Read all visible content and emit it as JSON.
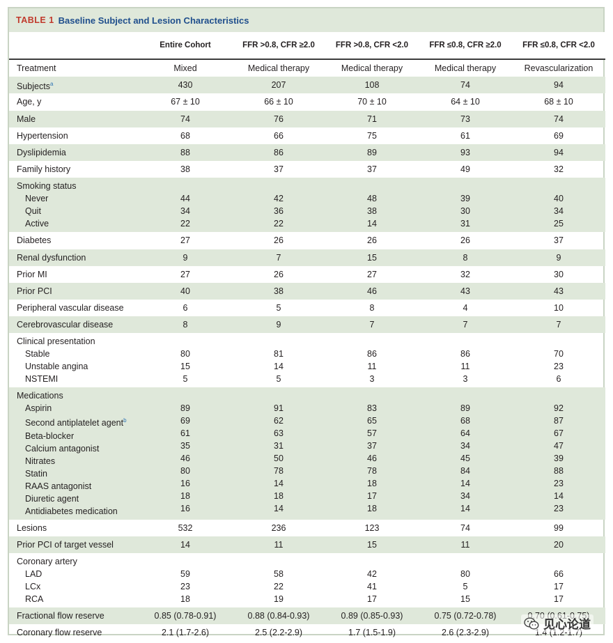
{
  "table": {
    "number": "TABLE 1",
    "title": "Baseline Subject and Lesion Characteristics",
    "columns": [
      "",
      "Entire Cohort",
      "FFR >0.8, CFR ≥2.0",
      "FFR >0.8, CFR <2.0",
      "FFR ≤0.8, CFR ≥2.0",
      "FFR ≤0.8, CFR <2.0"
    ],
    "rows": [
      {
        "label": "Treatment",
        "values": [
          "Mixed",
          "Medical therapy",
          "Medical therapy",
          "Medical therapy",
          "Revascularization"
        ]
      },
      {
        "label": "Subjects",
        "sup": "a",
        "values": [
          "430",
          "207",
          "108",
          "74",
          "94"
        ]
      },
      {
        "label": "Age, y",
        "values": [
          "67 ± 10",
          "66 ± 10",
          "70 ± 10",
          "64 ± 10",
          "68 ± 10"
        ]
      },
      {
        "label": "Male",
        "values": [
          "74",
          "76",
          "71",
          "73",
          "74"
        ]
      },
      {
        "label": "Hypertension",
        "values": [
          "68",
          "66",
          "75",
          "61",
          "69"
        ]
      },
      {
        "label": "Dyslipidemia",
        "values": [
          "88",
          "86",
          "89",
          "93",
          "94"
        ]
      },
      {
        "label": "Family history",
        "values": [
          "38",
          "37",
          "37",
          "49",
          "32"
        ]
      },
      {
        "label": "Smoking status",
        "group": true,
        "items": [
          {
            "label": "Never",
            "values": [
              "44",
              "42",
              "48",
              "39",
              "40"
            ]
          },
          {
            "label": "Quit",
            "values": [
              "34",
              "36",
              "38",
              "30",
              "34"
            ]
          },
          {
            "label": "Active",
            "values": [
              "22",
              "22",
              "14",
              "31",
              "25"
            ]
          }
        ]
      },
      {
        "label": "Diabetes",
        "values": [
          "27",
          "26",
          "26",
          "26",
          "37"
        ]
      },
      {
        "label": "Renal dysfunction",
        "values": [
          "9",
          "7",
          "15",
          "8",
          "9"
        ]
      },
      {
        "label": "Prior MI",
        "values": [
          "27",
          "26",
          "27",
          "32",
          "30"
        ]
      },
      {
        "label": "Prior PCI",
        "values": [
          "40",
          "38",
          "46",
          "43",
          "43"
        ]
      },
      {
        "label": "Peripheral vascular disease",
        "values": [
          "6",
          "5",
          "8",
          "4",
          "10"
        ]
      },
      {
        "label": "Cerebrovascular disease",
        "values": [
          "8",
          "9",
          "7",
          "7",
          "7"
        ]
      },
      {
        "label": "Clinical presentation",
        "group": true,
        "items": [
          {
            "label": "Stable",
            "values": [
              "80",
              "81",
              "86",
              "86",
              "70"
            ]
          },
          {
            "label": "Unstable angina",
            "values": [
              "15",
              "14",
              "11",
              "11",
              "23"
            ]
          },
          {
            "label": "NSTEMI",
            "values": [
              "5",
              "5",
              "3",
              "3",
              "6"
            ]
          }
        ]
      },
      {
        "label": "Medications",
        "group": true,
        "items": [
          {
            "label": "Aspirin",
            "values": [
              "89",
              "91",
              "83",
              "89",
              "92"
            ]
          },
          {
            "label": "Second antiplatelet agent",
            "sup": "b",
            "values": [
              "69",
              "62",
              "65",
              "68",
              "87"
            ]
          },
          {
            "label": "Beta-blocker",
            "values": [
              "61",
              "63",
              "57",
              "64",
              "67"
            ]
          },
          {
            "label": "Calcium antagonist",
            "values": [
              "35",
              "31",
              "37",
              "34",
              "47"
            ]
          },
          {
            "label": "Nitrates",
            "values": [
              "46",
              "50",
              "46",
              "45",
              "39"
            ]
          },
          {
            "label": "Statin",
            "values": [
              "80",
              "78",
              "78",
              "84",
              "88"
            ]
          },
          {
            "label": "RAAS antagonist",
            "values": [
              "16",
              "14",
              "18",
              "14",
              "23"
            ]
          },
          {
            "label": "Diuretic agent",
            "values": [
              "18",
              "18",
              "17",
              "34",
              "14"
            ]
          },
          {
            "label": "Antidiabetes medication",
            "values": [
              "16",
              "14",
              "18",
              "14",
              "23"
            ]
          }
        ]
      },
      {
        "label": "Lesions",
        "values": [
          "532",
          "236",
          "123",
          "74",
          "99"
        ]
      },
      {
        "label": "Prior PCI of target vessel",
        "values": [
          "14",
          "11",
          "15",
          "11",
          "20"
        ]
      },
      {
        "label": "Coronary artery",
        "group": true,
        "items": [
          {
            "label": "LAD",
            "values": [
              "59",
              "58",
              "42",
              "80",
              "66"
            ]
          },
          {
            "label": "LCx",
            "values": [
              "23",
              "22",
              "41",
              "5",
              "17"
            ]
          },
          {
            "label": "RCA",
            "values": [
              "18",
              "19",
              "17",
              "15",
              "17"
            ]
          }
        ]
      },
      {
        "label": "Fractional flow reserve",
        "values": [
          "0.85 (0.78-0.91)",
          "0.88 (0.84-0.93)",
          "0.89 (0.85-0.93)",
          "0.75 (0.72-0.78)",
          "0.70 (0.61-0.75)"
        ]
      },
      {
        "label": "Coronary flow reserve",
        "values": [
          "2.1 (1.7-2.6)",
          "2.5 (2.2-2.9)",
          "1.7 (1.5-1.9)",
          "2.6 (2.3-2.9)",
          "1.4 (1.2-1.7)"
        ]
      }
    ]
  },
  "watermark": {
    "text": "见心论道",
    "icon": "wechat-icon"
  }
}
